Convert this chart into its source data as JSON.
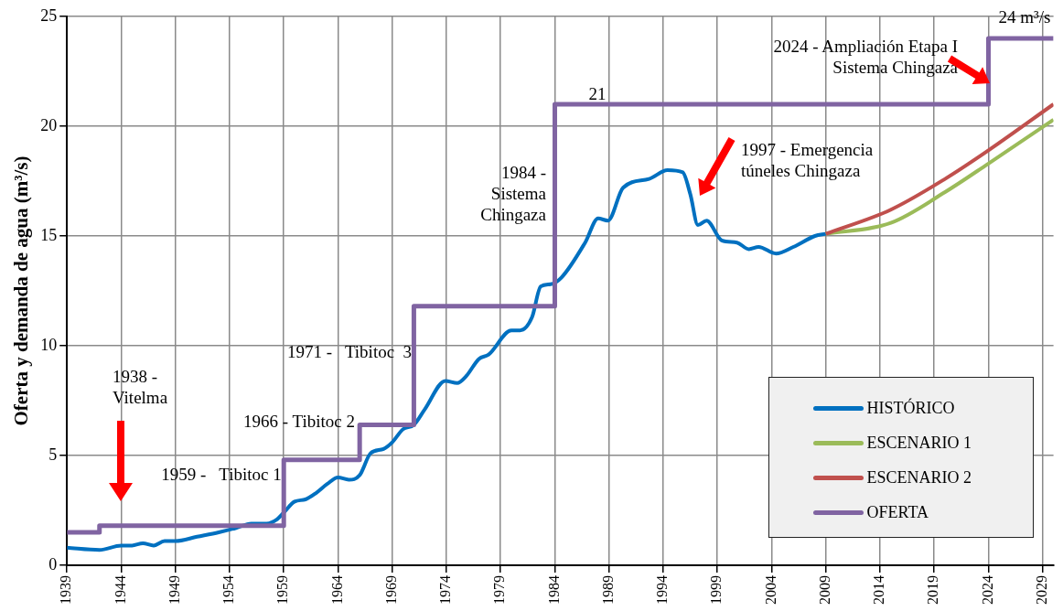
{
  "chart_data": {
    "type": "line",
    "ylabel": "Oferta y demanda de agua (m³/s)",
    "xlim": [
      1939,
      2030
    ],
    "xticks": [
      1939,
      1944,
      1949,
      1954,
      1959,
      1964,
      1969,
      1974,
      1979,
      1984,
      1989,
      1994,
      1999,
      2004,
      2009,
      2014,
      2019,
      2024,
      2029
    ],
    "ylim": [
      0,
      25
    ],
    "yticks": [
      0,
      5,
      10,
      15,
      20,
      25
    ],
    "grid": true,
    "legend": "bottom right",
    "series": [
      {
        "name": "HISTÓRICO",
        "color": "#0070c0",
        "x": [
          1939,
          1942,
          1944,
          1945,
          1946,
          1947,
          1948,
          1949,
          1951,
          1953,
          1954.6,
          1956,
          1957.4,
          1958.4,
          1959,
          1960,
          1961,
          1962,
          1963,
          1964,
          1965,
          1966,
          1967,
          1968.2,
          1969,
          1970,
          1971,
          1972,
          1973.9,
          1975,
          1975.8,
          1977,
          1977.9,
          1980,
          1980.8,
          1981.9,
          1982.7,
          1983.6,
          1984.6,
          1986.8,
          1988,
          1988.9,
          1990.3,
          1992.7,
          1994.4,
          1995.8,
          1996.5,
          1997.2,
          1998,
          1999.4,
          2000.8,
          2001.9,
          2002.8,
          2004.4,
          2006,
          2008,
          2009
        ],
        "values": [
          0.8,
          0.7,
          0.9,
          0.9,
          1.0,
          0.9,
          1.1,
          1.1,
          1.3,
          1.5,
          1.7,
          1.9,
          1.9,
          2.1,
          2.4,
          2.9,
          3.0,
          3.3,
          3.7,
          4.0,
          3.9,
          4.1,
          5.1,
          5.3,
          5.6,
          6.2,
          6.4,
          7.1,
          8.4,
          8.3,
          8.6,
          9.4,
          9.6,
          10.7,
          10.7,
          11.3,
          12.7,
          12.8,
          13.1,
          14.7,
          15.8,
          15.7,
          17.2,
          17.6,
          18.0,
          17.9,
          16.9,
          15.5,
          15.7,
          14.8,
          14.7,
          14.4,
          14.5,
          14.2,
          14.5,
          15.0,
          15.1
        ]
      },
      {
        "name": "ESCENARIO 1",
        "color": "#9bbb59",
        "x": [
          2009,
          2015,
          2020,
          2024,
          2030
        ],
        "values": [
          15.1,
          15.6,
          17.0,
          18.3,
          20.3
        ]
      },
      {
        "name": "ESCENARIO 2",
        "color": "#c0504d",
        "x": [
          2009,
          2015,
          2020,
          2024,
          2030
        ],
        "values": [
          15.1,
          16.2,
          17.6,
          18.9,
          21.0
        ]
      },
      {
        "name": "OFERTA",
        "type": "step",
        "color": "#8064a2",
        "x": [
          1939,
          1942,
          1959,
          1966,
          1971,
          1984,
          2024,
          2030
        ],
        "values": [
          1.5,
          1.8,
          4.8,
          6.4,
          11.8,
          21,
          24,
          24
        ]
      }
    ],
    "annotations": [
      "1938 -\nVitelma",
      "1959 -   Tibitoc 1",
      "1966 - Tibitoc 2",
      "1971 -   Tibitoc  3",
      "1984 -\nSistema\nChingaza",
      "1997 - Emergencia\ntúneles Chingaza",
      "2024 - Ampliación Etapa I\nSistema Chingaza",
      "24 m³/s",
      "21"
    ]
  }
}
